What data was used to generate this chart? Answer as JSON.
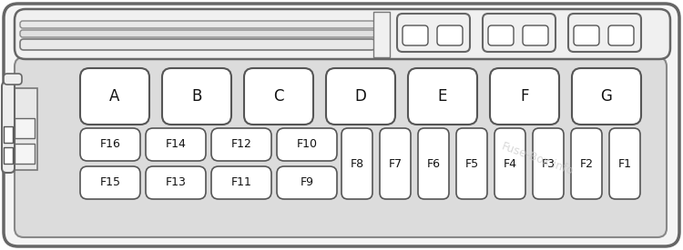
{
  "bg_outer": "#f2f2f2",
  "bg_inner": "#e0e0e0",
  "fuse_fill": "#ffffff",
  "fuse_edge": "#444444",
  "text_color": "#111111",
  "watermark": "Fuse-Box.info",
  "watermark_color": "#c8c8c8",
  "large_fuses": [
    "A",
    "B",
    "C",
    "D",
    "E",
    "F",
    "G"
  ],
  "left4_top": [
    "F16",
    "F14",
    "F12",
    "F10"
  ],
  "left4_bot": [
    "F15",
    "F13",
    "F11",
    "F9"
  ],
  "right8": [
    "F8",
    "F7",
    "F6",
    "F5",
    "F4",
    "F3",
    "F2",
    "F1"
  ],
  "fig_width": 7.5,
  "fig_height": 2.75,
  "dpi": 100
}
